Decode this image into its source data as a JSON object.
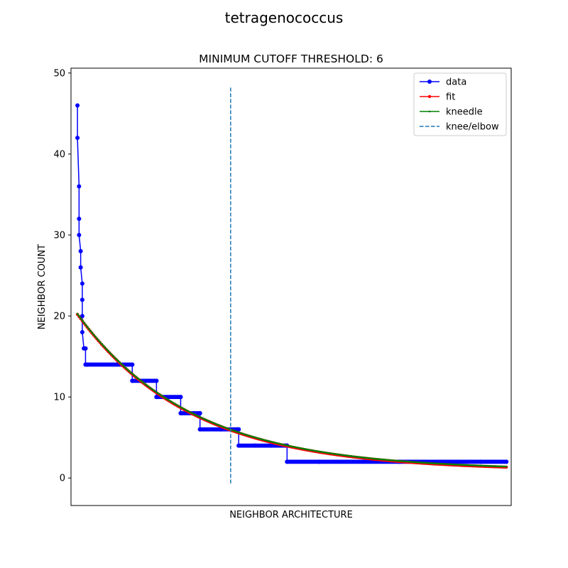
{
  "figure": {
    "suptitle": "tetragenococcus"
  },
  "chart_data": {
    "type": "line",
    "title": "MINIMUM CUTOFF THRESHOLD: 6",
    "xlabel": "NEIGHBOR ARCHITECTURE",
    "ylabel": "NEIGHBOR COUNT",
    "xlim": [
      -4,
      269
    ],
    "ylim": [
      -3.4,
      50.6
    ],
    "xticks_shown": false,
    "yticks": [
      0,
      10,
      20,
      30,
      40,
      50
    ],
    "grid": false,
    "legend_position": "top-right",
    "knee_x": 95,
    "knee_line_yrange": [
      -0.8,
      48.2
    ],
    "series": [
      {
        "name": "data",
        "color": "#0000ff",
        "marker": "circle",
        "style": "solid",
        "points": [
          [
            0,
            46
          ],
          [
            0,
            42
          ],
          [
            1,
            36
          ],
          [
            1,
            32
          ],
          [
            1,
            30
          ],
          [
            2,
            28
          ],
          [
            2,
            26
          ],
          [
            3,
            24
          ],
          [
            3,
            22
          ],
          [
            3,
            20
          ],
          [
            3,
            18
          ],
          [
            4,
            16
          ],
          [
            5,
            16
          ],
          [
            5,
            14
          ],
          [
            6,
            14
          ],
          [
            6,
            14
          ],
          [
            34,
            14
          ],
          [
            34,
            12
          ],
          [
            39,
            12
          ],
          [
            49,
            12
          ],
          [
            49,
            10
          ],
          [
            64,
            10
          ],
          [
            64,
            8
          ],
          [
            76,
            8
          ],
          [
            76,
            6
          ],
          [
            89,
            6
          ],
          [
            99,
            6
          ],
          [
            100,
            6
          ],
          [
            100,
            4
          ],
          [
            110,
            4
          ],
          [
            120,
            4
          ],
          [
            129,
            4
          ],
          [
            130,
            4
          ],
          [
            130,
            2
          ],
          [
            150,
            2
          ],
          [
            200,
            2
          ],
          [
            250,
            2
          ],
          [
            266,
            2
          ]
        ]
      },
      {
        "name": "fit",
        "color": "#ff0000",
        "marker": "circle",
        "style": "solid",
        "a": 19.3,
        "b": 0.0142,
        "c": 0.9,
        "x_range": [
          0,
          266
        ]
      },
      {
        "name": "kneedle",
        "color": "#008000",
        "marker": "point",
        "style": "solid",
        "a": 19.3,
        "b": 0.0142,
        "c": 0.9,
        "x_range": [
          0,
          266
        ]
      },
      {
        "name": "knee/elbow",
        "color": "#1f77b4",
        "marker": "none",
        "style": "dashed"
      }
    ]
  }
}
